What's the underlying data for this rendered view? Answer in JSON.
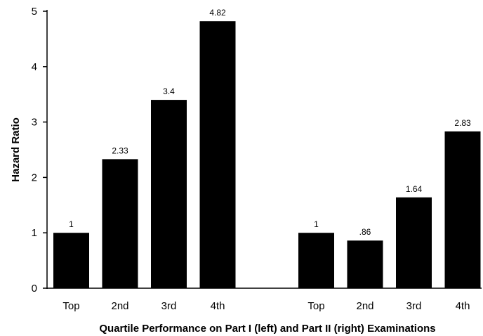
{
  "chart_data": {
    "type": "bar",
    "xlabel": "Quartile Performance on Part I (left) and Part II (right) Examinations",
    "ylabel": "Hazard Ratio",
    "ylim": [
      0,
      5
    ],
    "yticks": [
      "0",
      "1",
      "2",
      "3",
      "4",
      "5"
    ],
    "grid": false,
    "groups": [
      {
        "categories": [
          "Top",
          "2nd",
          "3rd",
          "4th"
        ],
        "values": [
          1,
          2.33,
          3.4,
          4.82
        ],
        "value_labels": [
          "1",
          "2.33",
          "3.4",
          "4.82"
        ]
      },
      {
        "categories": [
          "Top",
          "2nd",
          "3rd",
          "4th"
        ],
        "values": [
          1,
          0.86,
          1.64,
          2.83
        ],
        "value_labels": [
          "1",
          ".86",
          "1.64",
          "2.83"
        ]
      }
    ],
    "bar_color": "#000000"
  }
}
